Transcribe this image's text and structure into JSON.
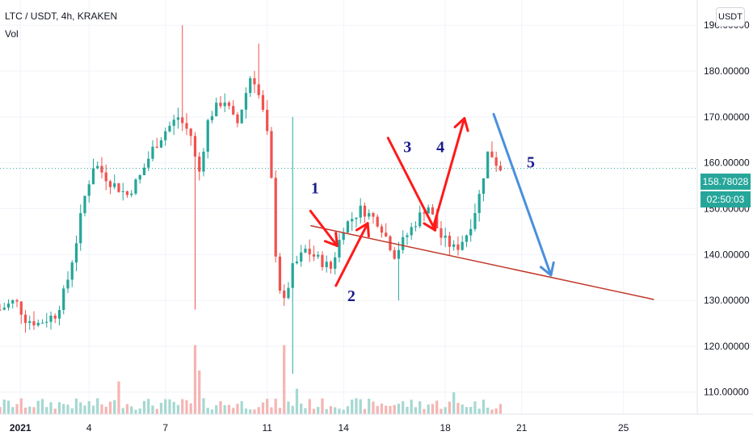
{
  "header": {
    "title": "LTC / USDT, 4h, KRAKEN",
    "indicator": "Vol",
    "currency_button": "USDT"
  },
  "current_price": {
    "label": "158.78028",
    "value": 158.78028,
    "countdown": "02:50:03"
  },
  "colors": {
    "up": "#26a69a",
    "down": "#ef5350",
    "vol_up": "#a6d8d2",
    "vol_down": "#f5b5b3",
    "annotation_red": "#ff1a1a",
    "annotation_blue": "#4a8fdc",
    "annotation_text": "#1a1a8c",
    "trendline": "#c0392b",
    "grid": "#f0f3fa",
    "axis_text": "#131722"
  },
  "chart_data": {
    "type": "candlestick",
    "y_axis": {
      "ylim": [
        105.2,
        195.5
      ],
      "ticks": [
        110,
        120,
        130,
        140,
        150,
        160,
        170,
        180,
        190
      ],
      "tick_labels": [
        "110.00000",
        "120.00000",
        "130.00000",
        "140.00000",
        "150.00000",
        "160.00000",
        "170.00000",
        "180.00000",
        "190.00000"
      ]
    },
    "x_axis": {
      "start": "2021-01-01",
      "range_days": 27.4,
      "ticks": [
        {
          "label": "2021",
          "day": 0.8
        },
        {
          "label": "4",
          "day": 3.5
        },
        {
          "label": "7",
          "day": 6.5
        },
        {
          "label": "11",
          "day": 10.5
        },
        {
          "label": "14",
          "day": 13.5
        },
        {
          "label": "18",
          "day": 17.5
        },
        {
          "label": "21",
          "day": 20.5
        },
        {
          "label": "25",
          "day": 24.5
        }
      ]
    },
    "grid": true,
    "anchors": [
      {
        "day": 0.0,
        "price": 128
      },
      {
        "day": 0.6,
        "price": 130
      },
      {
        "day": 1.0,
        "price": 126
      },
      {
        "day": 1.5,
        "price": 125
      },
      {
        "day": 2.2,
        "price": 127
      },
      {
        "day": 2.6,
        "price": 133
      },
      {
        "day": 3.0,
        "price": 143
      },
      {
        "day": 3.3,
        "price": 152
      },
      {
        "day": 3.7,
        "price": 160
      },
      {
        "day": 4.3,
        "price": 156
      },
      {
        "day": 5.0,
        "price": 153
      },
      {
        "day": 5.5,
        "price": 157
      },
      {
        "day": 6.0,
        "price": 163
      },
      {
        "day": 6.5,
        "price": 167
      },
      {
        "day": 7.0,
        "price": 170
      },
      {
        "day": 7.5,
        "price": 166
      },
      {
        "day": 7.8,
        "price": 157
      },
      {
        "day": 8.2,
        "price": 170
      },
      {
        "day": 8.8,
        "price": 174
      },
      {
        "day": 9.3,
        "price": 168
      },
      {
        "day": 9.9,
        "price": 180
      },
      {
        "day": 10.3,
        "price": 172
      },
      {
        "day": 10.6,
        "price": 163
      },
      {
        "day": 10.8,
        "price": 142
      },
      {
        "day": 11.1,
        "price": 128
      },
      {
        "day": 11.5,
        "price": 137
      },
      {
        "day": 12.0,
        "price": 141
      },
      {
        "day": 12.5,
        "price": 139
      },
      {
        "day": 13.0,
        "price": 137
      },
      {
        "day": 13.5,
        "price": 146
      },
      {
        "day": 14.2,
        "price": 150
      },
      {
        "day": 14.9,
        "price": 147
      },
      {
        "day": 15.5,
        "price": 140
      },
      {
        "day": 16.2,
        "price": 146
      },
      {
        "day": 16.8,
        "price": 151
      },
      {
        "day": 17.3,
        "price": 144
      },
      {
        "day": 17.9,
        "price": 141
      },
      {
        "day": 18.4,
        "price": 145
      },
      {
        "day": 18.8,
        "price": 152
      },
      {
        "day": 19.2,
        "price": 163
      },
      {
        "day": 19.6,
        "price": 159
      },
      {
        "day": 19.8,
        "price": 158.78
      }
    ],
    "spikes": [
      {
        "day": 7.2,
        "high": 190
      },
      {
        "day": 10.1,
        "high": 186
      },
      {
        "day": 7.7,
        "low": 128
      },
      {
        "day": 11.5,
        "high": 170,
        "low": 114
      },
      {
        "day": 15.6,
        "low": 130
      }
    ],
    "volume_spikes": [
      {
        "day": 7.6,
        "pct": 0.95
      },
      {
        "day": 7.9,
        "pct": 0.6
      },
      {
        "day": 11.1,
        "pct": 0.95
      },
      {
        "day": 4.7,
        "pct": 0.45
      },
      {
        "day": 17.9,
        "pct": 0.3
      },
      {
        "day": 11.6,
        "pct": 0.35
      }
    ]
  },
  "annotations": {
    "labels": [
      {
        "text": "1",
        "day": 12.22,
        "price": 153.3
      },
      {
        "text": "2",
        "day": 13.65,
        "price": 129.8
      },
      {
        "text": "3",
        "day": 15.85,
        "price": 162.3
      },
      {
        "text": "4",
        "day": 17.15,
        "price": 162.3
      },
      {
        "text": "5",
        "day": 20.7,
        "price": 159.0
      }
    ],
    "red_arrows": [
      {
        "from": [
          12.2,
          149.5
        ],
        "to": [
          13.25,
          141.9
        ]
      },
      {
        "from": [
          13.2,
          133.2
        ],
        "to": [
          14.45,
          146.8
        ]
      },
      {
        "from": [
          15.25,
          165.4
        ],
        "to": [
          17.1,
          145.3
        ]
      },
      {
        "from": [
          17.05,
          146.4
        ],
        "to": [
          18.25,
          169.7
        ]
      }
    ],
    "blue_arrow": {
      "from": [
        19.4,
        170.6
      ],
      "to": [
        21.65,
        135.5
      ]
    },
    "trendline": {
      "from": [
        12.2,
        146.3
      ],
      "to": [
        25.7,
        130.2
      ]
    }
  }
}
